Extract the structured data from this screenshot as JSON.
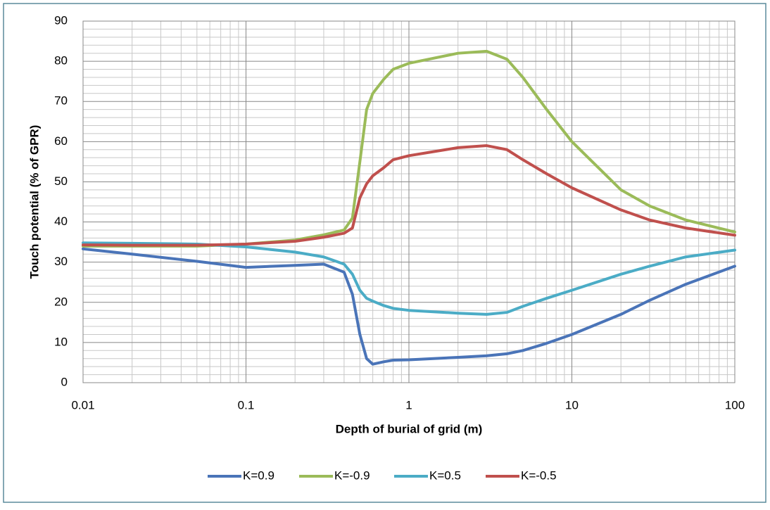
{
  "chart_data": {
    "type": "line",
    "x_label": "Depth of burial of grid (m)",
    "y_label": "Touch potential (% of GPR)",
    "x": [
      0.01,
      0.02,
      0.05,
      0.1,
      0.2,
      0.3,
      0.4,
      0.45,
      0.5,
      0.55,
      0.6,
      0.7,
      0.8,
      1,
      2,
      3,
      4,
      5,
      7,
      10,
      20,
      30,
      50,
      100
    ],
    "series": [
      {
        "name": "K=0.9",
        "color": "#4a74b8",
        "values": [
          33.3,
          32,
          30.2,
          28.7,
          29.2,
          29.5,
          27.5,
          22,
          12,
          6,
          4.6,
          5.2,
          5.6,
          5.7,
          6.3,
          6.7,
          7.2,
          8,
          9.8,
          12,
          17,
          20.5,
          24.5,
          29
        ]
      },
      {
        "name": "K=-0.9",
        "color": "#9bbb59",
        "values": [
          34,
          34,
          34,
          34.5,
          35.5,
          36.8,
          38,
          41,
          55,
          68,
          72,
          75.5,
          78,
          79.5,
          82,
          82.5,
          80.5,
          76,
          68,
          60,
          48,
          44,
          40.5,
          37.5
        ]
      },
      {
        "name": "K=0.5",
        "color": "#4bacc6",
        "values": [
          34.8,
          34.7,
          34.5,
          33.8,
          32.5,
          31.3,
          29.5,
          27,
          23,
          21,
          20.3,
          19.2,
          18.5,
          18,
          17.3,
          17,
          17.5,
          19,
          21,
          23,
          27,
          29,
          31.3,
          33
        ]
      },
      {
        "name": "K=-0.5",
        "color": "#c0504d",
        "values": [
          34.3,
          34.2,
          34.2,
          34.5,
          35.2,
          36.2,
          37.2,
          38.5,
          46,
          49.5,
          51.5,
          53.5,
          55.5,
          56.5,
          58.5,
          59,
          58,
          55.5,
          52,
          48.5,
          43,
          40.5,
          38.5,
          36.7
        ]
      }
    ],
    "xlim": [
      0.01,
      100
    ],
    "xticks": [
      0.01,
      0.1,
      1,
      10,
      100
    ],
    "x_log": true,
    "ylim": [
      0,
      90
    ],
    "yticks": [
      0,
      10,
      20,
      30,
      40,
      50,
      60,
      70,
      80,
      90
    ],
    "grid": true,
    "minor_grid": true,
    "legend": "bottom"
  }
}
